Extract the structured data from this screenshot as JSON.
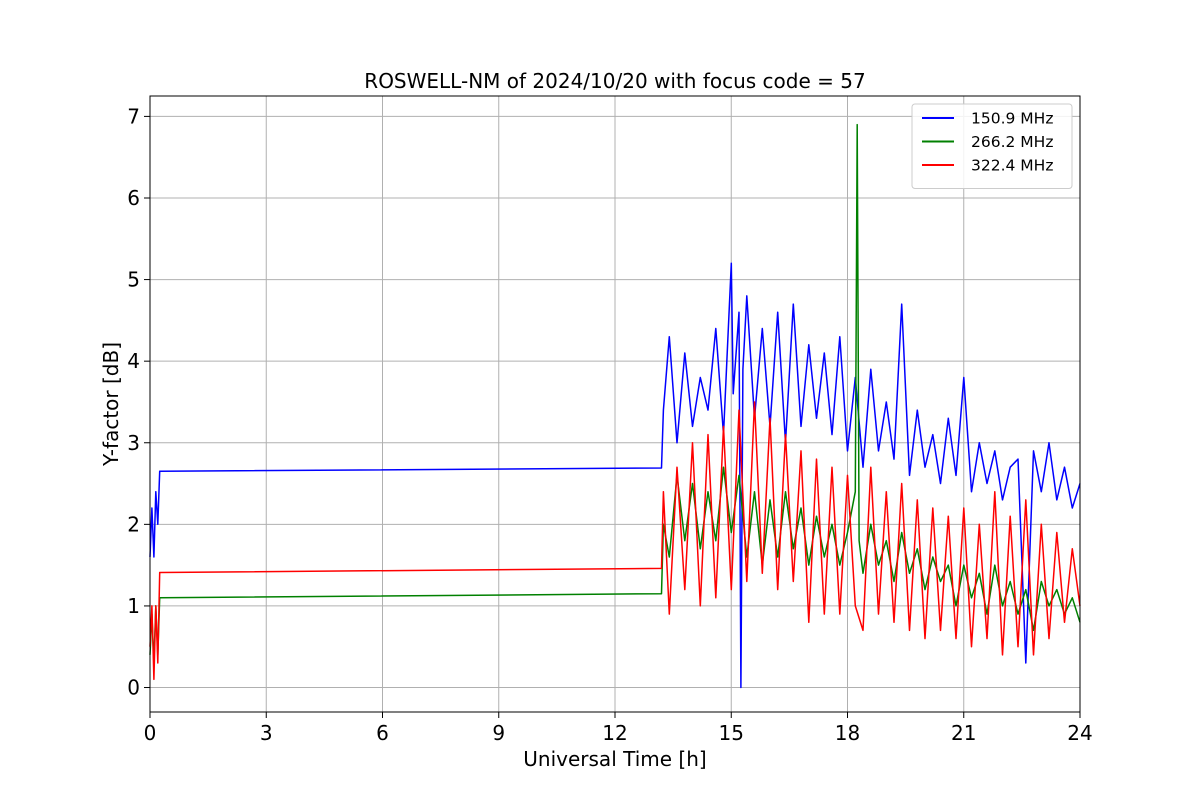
{
  "chart_data": {
    "type": "line",
    "title": "ROSWELL-NM of 2024/10/20 with focus code = 57",
    "xlabel": "Universal Time [h]",
    "ylabel": "Y-factor [dB]",
    "xlim": [
      0,
      24
    ],
    "ylim": [
      -0.3,
      7.25
    ],
    "xticks": [
      0,
      3,
      6,
      9,
      12,
      15,
      18,
      21,
      24
    ],
    "yticks": [
      0,
      1,
      2,
      3,
      4,
      5,
      6,
      7
    ],
    "grid": true,
    "legend_position": "top-right",
    "series": [
      {
        "name": "150.9 MHz",
        "color": "#0000ff",
        "x": [
          0.0,
          0.05,
          0.1,
          0.15,
          0.2,
          0.25,
          13.2,
          13.25,
          13.4,
          13.6,
          13.8,
          14.0,
          14.2,
          14.4,
          14.6,
          14.8,
          15.0,
          15.05,
          15.2,
          15.25,
          15.3,
          15.4,
          15.6,
          15.8,
          16.0,
          16.2,
          16.4,
          16.6,
          16.8,
          17.0,
          17.2,
          17.4,
          17.6,
          17.8,
          18.0,
          18.2,
          18.4,
          18.6,
          18.8,
          19.0,
          19.2,
          19.4,
          19.6,
          19.8,
          20.0,
          20.2,
          20.4,
          20.6,
          20.8,
          21.0,
          21.2,
          21.4,
          21.6,
          21.8,
          22.0,
          22.2,
          22.4,
          22.6,
          22.8,
          23.0,
          23.2,
          23.4,
          23.6,
          23.8,
          24.0
        ],
        "y": [
          1.6,
          2.2,
          1.6,
          2.4,
          2.0,
          2.65,
          2.69,
          3.4,
          4.3,
          3.0,
          4.1,
          3.2,
          3.8,
          3.4,
          4.4,
          3.1,
          5.2,
          3.6,
          4.6,
          0.0,
          3.9,
          4.8,
          3.3,
          4.4,
          3.2,
          4.6,
          3.0,
          4.7,
          3.2,
          4.2,
          3.3,
          4.1,
          3.1,
          4.3,
          2.9,
          3.8,
          2.7,
          3.9,
          2.9,
          3.5,
          2.8,
          4.7,
          2.6,
          3.4,
          2.7,
          3.1,
          2.5,
          3.3,
          2.6,
          3.8,
          2.4,
          3.0,
          2.5,
          2.9,
          2.3,
          2.7,
          2.8,
          0.3,
          2.9,
          2.4,
          3.0,
          2.3,
          2.7,
          2.2,
          2.5
        ]
      },
      {
        "name": "266.2 MHz",
        "color": "#008000",
        "x": [
          0.0,
          0.05,
          0.1,
          0.15,
          0.2,
          0.25,
          13.2,
          13.25,
          13.4,
          13.6,
          13.8,
          14.0,
          14.2,
          14.4,
          14.6,
          14.8,
          15.0,
          15.2,
          15.4,
          15.6,
          15.8,
          16.0,
          16.2,
          16.4,
          16.6,
          16.8,
          17.0,
          17.2,
          17.4,
          17.6,
          17.8,
          18.0,
          18.2,
          18.25,
          18.3,
          18.4,
          18.6,
          18.8,
          19.0,
          19.2,
          19.4,
          19.6,
          19.8,
          20.0,
          20.2,
          20.4,
          20.6,
          20.8,
          21.0,
          21.2,
          21.4,
          21.6,
          21.8,
          22.0,
          22.2,
          22.4,
          22.6,
          22.8,
          23.0,
          23.2,
          23.4,
          23.6,
          23.8,
          24.0
        ],
        "y": [
          0.4,
          0.9,
          0.3,
          1.0,
          0.4,
          1.1,
          1.15,
          2.0,
          1.6,
          2.6,
          1.8,
          2.5,
          1.7,
          2.4,
          1.8,
          2.7,
          1.9,
          2.6,
          1.6,
          2.4,
          1.5,
          2.3,
          1.6,
          2.4,
          1.7,
          2.2,
          1.5,
          2.1,
          1.6,
          2.0,
          1.5,
          1.9,
          2.4,
          6.9,
          1.8,
          1.4,
          2.0,
          1.5,
          1.8,
          1.3,
          1.9,
          1.4,
          1.7,
          1.2,
          1.6,
          1.3,
          1.5,
          1.0,
          1.5,
          1.1,
          1.4,
          0.9,
          1.5,
          1.0,
          1.3,
          0.9,
          1.2,
          0.7,
          1.3,
          1.0,
          1.2,
          0.9,
          1.1,
          0.8
        ]
      },
      {
        "name": "322.4 MHz",
        "color": "#ff0000",
        "x": [
          0.0,
          0.05,
          0.1,
          0.15,
          0.2,
          0.25,
          13.2,
          13.25,
          13.4,
          13.6,
          13.8,
          14.0,
          14.2,
          14.4,
          14.6,
          14.8,
          15.0,
          15.2,
          15.4,
          15.6,
          15.8,
          16.0,
          16.2,
          16.4,
          16.6,
          16.8,
          17.0,
          17.2,
          17.4,
          17.6,
          17.8,
          18.0,
          18.2,
          18.4,
          18.6,
          18.8,
          19.0,
          19.2,
          19.4,
          19.6,
          19.8,
          20.0,
          20.2,
          20.4,
          20.6,
          20.8,
          21.0,
          21.2,
          21.4,
          21.6,
          21.8,
          22.0,
          22.2,
          22.4,
          22.6,
          22.8,
          23.0,
          23.2,
          23.4,
          23.6,
          23.8,
          24.0
        ],
        "y": [
          0.5,
          1.0,
          0.1,
          1.0,
          0.3,
          1.41,
          1.46,
          2.4,
          0.9,
          2.7,
          1.2,
          3.0,
          1.0,
          3.1,
          1.1,
          3.2,
          1.2,
          3.4,
          1.3,
          3.5,
          1.4,
          3.3,
          1.2,
          3.1,
          1.3,
          2.9,
          0.8,
          2.8,
          0.9,
          2.7,
          0.9,
          2.6,
          1.0,
          0.7,
          2.7,
          0.9,
          2.4,
          0.8,
          2.5,
          0.7,
          2.3,
          0.6,
          2.2,
          0.7,
          2.1,
          0.6,
          2.2,
          0.5,
          2.0,
          0.6,
          2.4,
          0.4,
          2.1,
          0.5,
          2.3,
          0.4,
          2.0,
          0.6,
          1.9,
          0.8,
          1.7,
          1.0
        ]
      }
    ]
  }
}
